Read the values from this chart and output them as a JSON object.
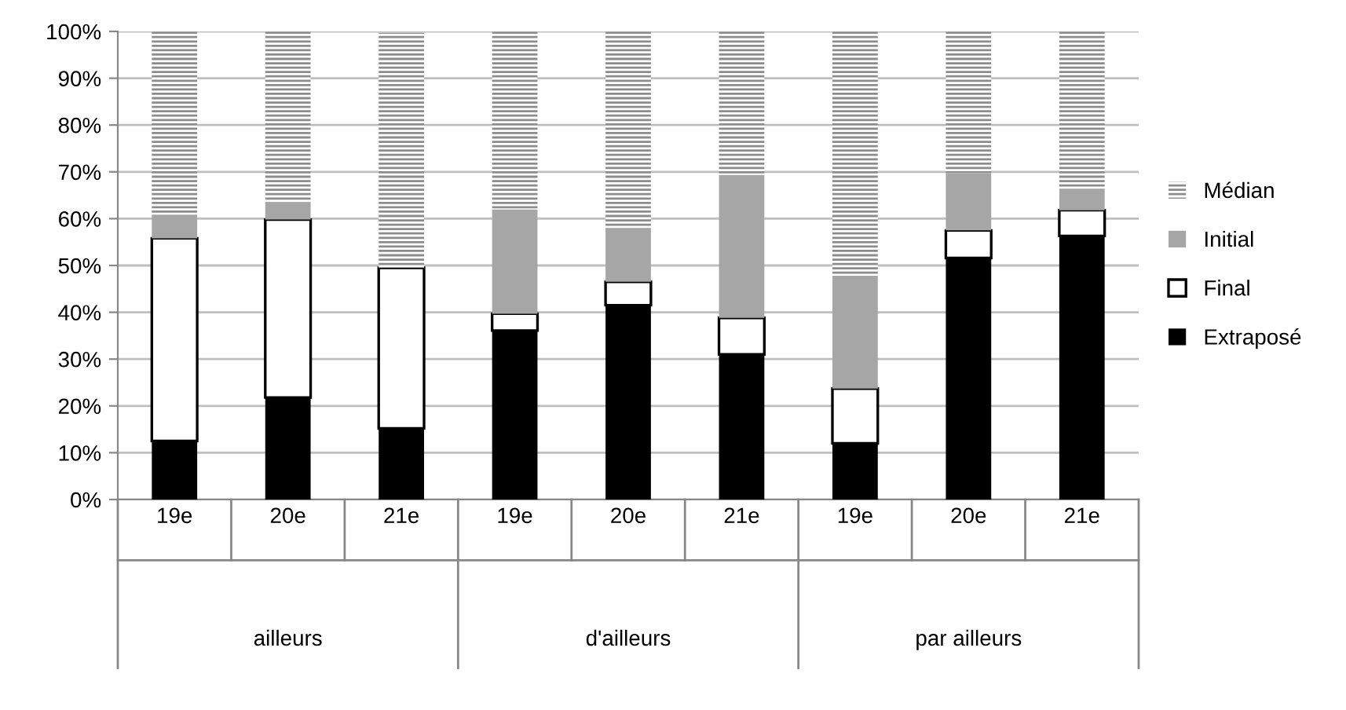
{
  "chart_data": {
    "type": "bar",
    "stacked": true,
    "categories": [
      "19e",
      "20e",
      "21e",
      "19e",
      "20e",
      "21e",
      "19e",
      "20e",
      "21e"
    ],
    "annotations": [
      "ailleurs",
      "d'ailleurs",
      "par ailleurs"
    ],
    "series": [
      {
        "name": "Extraposé",
        "color": "#000000",
        "values": [
          12.5,
          21.8,
          15.2,
          36.1,
          41.5,
          31.0,
          12.0,
          51.6,
          56.3
        ]
      },
      {
        "name": "Final",
        "color": "#ffffff",
        "values": [
          43.3,
          38.0,
          34.3,
          3.6,
          5.0,
          7.8,
          11.7,
          5.9,
          5.5
        ]
      },
      {
        "name": "Initial",
        "color": "#a6a6a6",
        "values": [
          4.8,
          3.7,
          null,
          22.3,
          11.5,
          30.6,
          23.7,
          12.2,
          4.5
        ]
      },
      {
        "name": "Médian",
        "color": "#8c8c8c",
        "values": [
          39.4,
          36.5,
          50.2,
          38.0,
          42.0,
          30.6,
          52.6,
          30.3,
          33.7
        ]
      }
    ],
    "ylim": [
      0,
      100
    ],
    "yticks": [
      {
        "value": 0,
        "label": "0%"
      },
      {
        "value": 10,
        "label": "10%"
      },
      {
        "value": 20,
        "label": "20%"
      },
      {
        "value": 30,
        "label": "30%"
      },
      {
        "value": 40,
        "label": "40%"
      },
      {
        "value": 50,
        "label": "50%"
      },
      {
        "value": 60,
        "label": "60%"
      },
      {
        "value": 70,
        "label": "70%"
      },
      {
        "value": 80,
        "label": "80%"
      },
      {
        "value": 90,
        "label": "90%"
      },
      {
        "value": 100,
        "label": "100%"
      }
    ],
    "grid": "y",
    "legend": "right"
  }
}
